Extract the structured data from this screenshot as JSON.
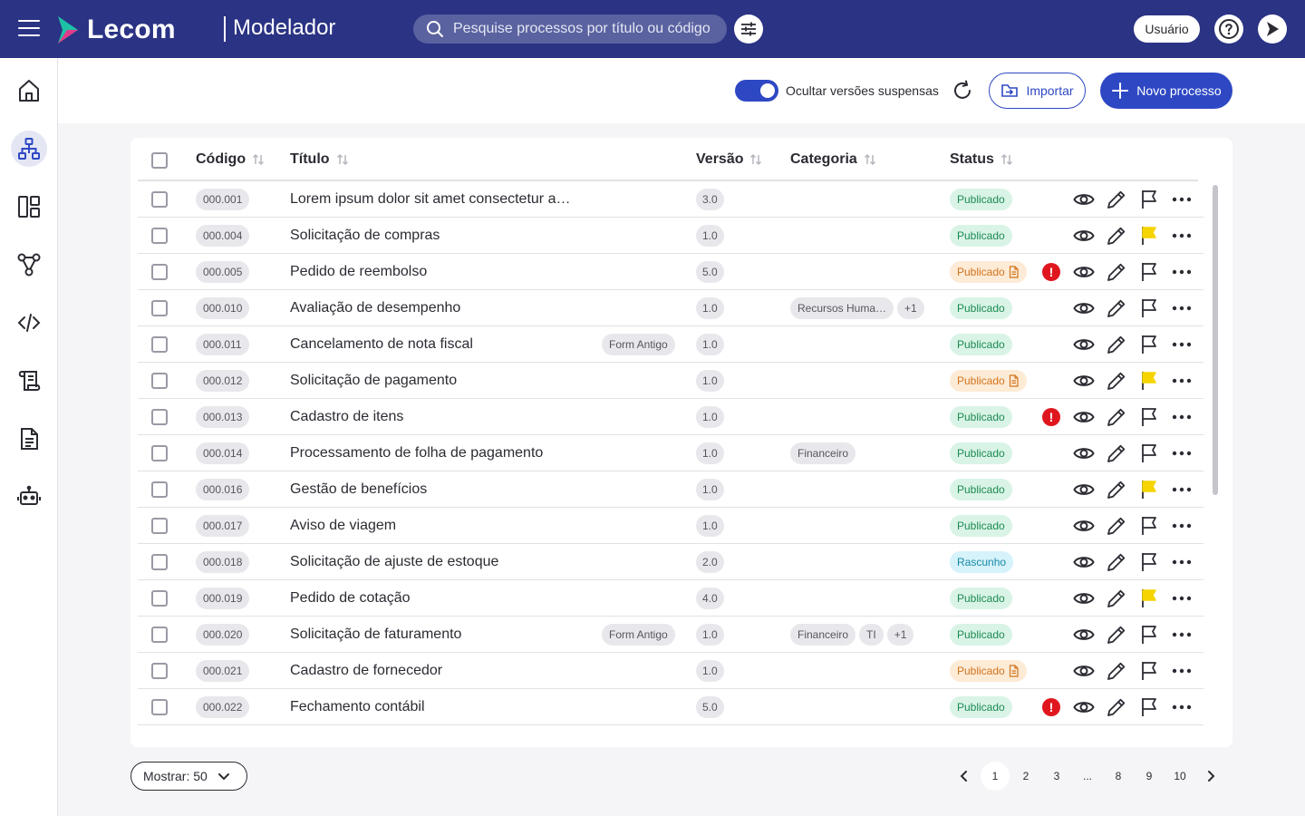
{
  "header": {
    "brand": "Lecom",
    "app_name": "Modelador",
    "search_placeholder": "Pesquise processos por título ou código",
    "user_label": "Usuário"
  },
  "sidebar": {
    "items": [
      {
        "name": "home-icon"
      },
      {
        "name": "process-tree-icon",
        "active": true
      },
      {
        "name": "dashboard-icon"
      },
      {
        "name": "workflow-icon"
      },
      {
        "name": "code-icon"
      },
      {
        "name": "scroll-icon"
      },
      {
        "name": "document-icon"
      },
      {
        "name": "robot-icon"
      }
    ]
  },
  "toolbar": {
    "toggle_label": "Ocultar versões suspensas",
    "toggle_on": true,
    "import_label": "Importar",
    "new_label": "Novo processo"
  },
  "table": {
    "columns": {
      "code": "Código",
      "title": "Título",
      "version": "Versão",
      "category": "Categoria",
      "status": "Status"
    },
    "rows": [
      {
        "code": "000.001",
        "title": "Lorem ipsum dolor sit amet consectetur a…",
        "form": "",
        "version": "3.0",
        "categories": [],
        "status": "Publicado",
        "status_color": "green",
        "doc": false,
        "alert": false,
        "flagged": false
      },
      {
        "code": "000.004",
        "title": "Solicitação de compras",
        "form": "",
        "version": "1.0",
        "categories": [],
        "status": "Publicado",
        "status_color": "green",
        "doc": false,
        "alert": false,
        "flagged": true
      },
      {
        "code": "000.005",
        "title": "Pedido de reembolso",
        "form": "",
        "version": "5.0",
        "categories": [],
        "status": "Publicado",
        "status_color": "orange",
        "doc": true,
        "alert": true,
        "flagged": false
      },
      {
        "code": "000.010",
        "title": "Avaliação de desempenho",
        "form": "",
        "version": "1.0",
        "categories": [
          "Recursos Huma…",
          "+1"
        ],
        "status": "Publicado",
        "status_color": "green",
        "doc": false,
        "alert": false,
        "flagged": false
      },
      {
        "code": "000.011",
        "title": "Cancelamento de nota fiscal",
        "form": "Form Antigo",
        "version": "1.0",
        "categories": [],
        "status": "Publicado",
        "status_color": "green",
        "doc": false,
        "alert": false,
        "flagged": false
      },
      {
        "code": "000.012",
        "title": "Solicitação de pagamento",
        "form": "",
        "version": "1.0",
        "categories": [],
        "status": "Publicado",
        "status_color": "orange",
        "doc": true,
        "alert": false,
        "flagged": true
      },
      {
        "code": "000.013",
        "title": "Cadastro de itens",
        "form": "",
        "version": "1.0",
        "categories": [],
        "status": "Publicado",
        "status_color": "green",
        "doc": false,
        "alert": true,
        "flagged": false
      },
      {
        "code": "000.014",
        "title": "Processamento de folha de pagamento",
        "form": "",
        "version": "1.0",
        "categories": [
          "Financeiro"
        ],
        "status": "Publicado",
        "status_color": "green",
        "doc": false,
        "alert": false,
        "flagged": false
      },
      {
        "code": "000.016",
        "title": "Gestão de benefícios",
        "form": "",
        "version": "1.0",
        "categories": [],
        "status": "Publicado",
        "status_color": "green",
        "doc": false,
        "alert": false,
        "flagged": true
      },
      {
        "code": "000.017",
        "title": "Aviso de viagem",
        "form": "",
        "version": "1.0",
        "categories": [],
        "status": "Publicado",
        "status_color": "green",
        "doc": false,
        "alert": false,
        "flagged": false
      },
      {
        "code": "000.018",
        "title": "Solicitação de ajuste de estoque",
        "form": "",
        "version": "2.0",
        "categories": [],
        "status": "Rascunho",
        "status_color": "cyan",
        "doc": false,
        "alert": false,
        "flagged": false
      },
      {
        "code": "000.019",
        "title": "Pedido de cotação",
        "form": "",
        "version": "4.0",
        "categories": [],
        "status": "Publicado",
        "status_color": "green",
        "doc": false,
        "alert": false,
        "flagged": true
      },
      {
        "code": "000.020",
        "title": "Solicitação de faturamento",
        "form": "Form Antigo",
        "version": "1.0",
        "categories": [
          "Financeiro",
          "TI",
          "+1"
        ],
        "status": "Publicado",
        "status_color": "green",
        "doc": false,
        "alert": false,
        "flagged": false
      },
      {
        "code": "000.021",
        "title": "Cadastro de fornecedor",
        "form": "",
        "version": "1.0",
        "categories": [],
        "status": "Publicado",
        "status_color": "orange",
        "doc": true,
        "alert": false,
        "flagged": false
      },
      {
        "code": "000.022",
        "title": "Fechamento contábil",
        "form": "",
        "version": "5.0",
        "categories": [],
        "status": "Publicado",
        "status_color": "green",
        "doc": false,
        "alert": true,
        "flagged": false
      }
    ]
  },
  "footer": {
    "show_label": "Mostrar: 50",
    "pages": [
      "1",
      "2",
      "3",
      "...",
      "8",
      "9",
      "10"
    ],
    "current_page": "1"
  },
  "colors": {
    "topbar": "#2b3384",
    "primary": "#2e48c4",
    "flag_yellow": "#f5d400",
    "alert_red": "#e0161e"
  }
}
